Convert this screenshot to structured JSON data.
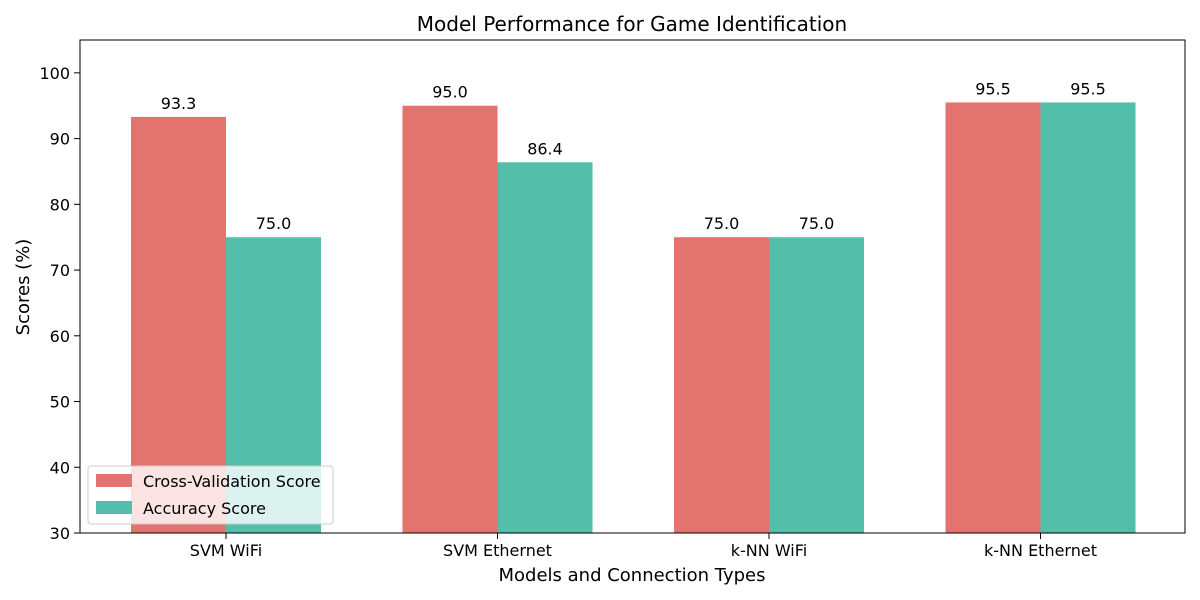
{
  "chart_data": {
    "type": "bar",
    "title": "Model Performance for Game Identification",
    "xlabel": "Models and Connection Types",
    "ylabel": "Scores (%)",
    "ylim": [
      30,
      105
    ],
    "yticks": [
      30,
      40,
      50,
      60,
      70,
      80,
      90,
      100
    ],
    "categories": [
      "SVM WiFi",
      "SVM Ethernet",
      "k-NN WiFi",
      "k-NN Ethernet"
    ],
    "series": [
      {
        "name": "Cross-Validation Score",
        "color": "#e3736e",
        "values": [
          93.3,
          95.0,
          75.0,
          95.5
        ],
        "labels": [
          "93.3",
          "95.0",
          "75.0",
          "95.5"
        ]
      },
      {
        "name": "Accuracy Score",
        "color": "#53bea9",
        "values": [
          75.0,
          86.4,
          75.0,
          95.5
        ],
        "labels": [
          "75.0",
          "86.4",
          "75.0",
          "95.5"
        ]
      }
    ],
    "grid": false,
    "legend_position": "bottom-left"
  }
}
